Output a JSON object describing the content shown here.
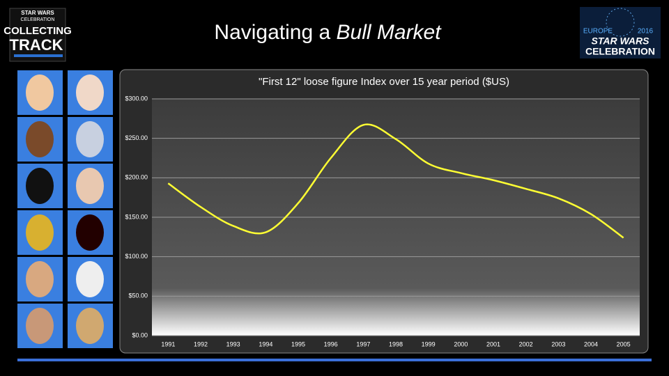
{
  "slide": {
    "title": "Navigating a",
    "title_italic": "Bull Market",
    "left_logo": {
      "line1": "STAR WARS",
      "line2": "CELEBRATION",
      "line3": "COLLECTING",
      "line4": "TRACK"
    },
    "right_logo": {
      "region": "EUROPE",
      "year": "2016",
      "line1": "STAR WARS",
      "line2": "CELEBRATION"
    }
  },
  "chart_data": {
    "type": "line",
    "title": "\"First 12\" loose figure Index over 15 year period ($US)",
    "categories": [
      "1991",
      "1992",
      "1993",
      "1994",
      "1995",
      "1996",
      "1997",
      "1998",
      "1999",
      "2000",
      "2001",
      "2002",
      "2003",
      "2004",
      "2005"
    ],
    "series": [
      {
        "color": "#ffff33",
        "values": [
          193,
          163,
          139,
          131,
          168,
          225,
          267,
          249,
          218,
          206,
          197,
          186,
          174,
          154,
          124
        ]
      }
    ],
    "ylim": [
      0,
      300
    ],
    "yticks": [
      {
        "value": 0,
        "label": "$0.00"
      },
      {
        "value": 50,
        "label": "$50.00"
      },
      {
        "value": 100,
        "label": "$100.00"
      },
      {
        "value": 150,
        "label": "$150.00"
      },
      {
        "value": 200,
        "label": "$200.00"
      },
      {
        "value": 250,
        "label": "$250.00"
      },
      {
        "value": 300,
        "label": "$300.00"
      }
    ],
    "grid": true
  }
}
